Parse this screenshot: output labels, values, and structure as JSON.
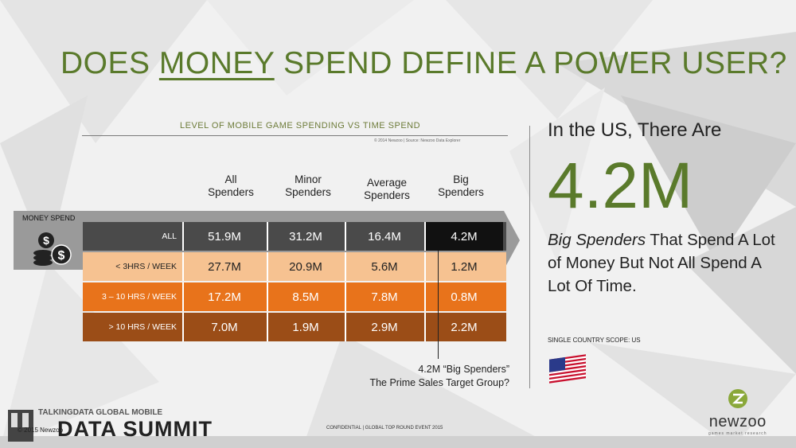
{
  "title": {
    "pre": "DOES ",
    "underlined": "MONEY",
    "post": " SPEND DEFINE A POWER USER?"
  },
  "chart": {
    "title": "LEVEL OF MOBILE GAME SPENDING VS TIME SPEND",
    "source": "© 2014 Newzoo | Source: Newzoo Data Explorer",
    "axis_label": "MONEY SPEND",
    "columns": [
      {
        "line1": "All",
        "line2": "Spenders"
      },
      {
        "line1": "Minor",
        "line2": "Spenders"
      },
      {
        "line1": "Average",
        "line2": "Spenders"
      },
      {
        "line1": "Big",
        "line2": "Spenders"
      }
    ],
    "rows": [
      {
        "label": "ALL",
        "values": [
          "51.9M",
          "31.2M",
          "16.4M",
          "4.2M"
        ],
        "bg": "#4a4a4a",
        "highlight": "#111111",
        "color": "#ffffff"
      },
      {
        "label": "< 3HRS / WEEK",
        "values": [
          "27.7M",
          "20.9M",
          "5.6M",
          "1.2M"
        ],
        "bg": "#f6c291",
        "highlight": "#f6c291",
        "color": "#222222"
      },
      {
        "label": "3 – 10 HRS / WEEK",
        "values": [
          "17.2M",
          "8.5M",
          "7.8M",
          "0.8M"
        ],
        "bg": "#e8731b",
        "highlight": "#e8731b",
        "color": "#ffffff"
      },
      {
        "label": "> 10 HRS / WEEK",
        "values": [
          "7.0M",
          "1.9M",
          "2.9M",
          "2.2M"
        ],
        "bg": "#9b4d17",
        "highlight": "#9b4d17",
        "color": "#ffffff"
      }
    ],
    "callout_line1": "4.2M “Big Spenders”",
    "callout_line2": "The Prime Sales Target Group?"
  },
  "chart_data": {
    "type": "table",
    "title": "LEVEL OF MOBILE GAME SPENDING VS TIME SPEND",
    "columns": [
      "All Spenders",
      "Minor Spenders",
      "Average Spenders",
      "Big Spenders"
    ],
    "rows": [
      {
        "name": "ALL",
        "values": [
          "51.9M",
          "31.2M",
          "16.4M",
          "4.2M"
        ]
      },
      {
        "name": "< 3HRS / WEEK",
        "values": [
          "27.7M",
          "20.9M",
          "5.6M",
          "1.2M"
        ]
      },
      {
        "name": "3 – 10 HRS / WEEK",
        "values": [
          "17.2M",
          "8.5M",
          "7.8M",
          "0.8M"
        ]
      },
      {
        "name": "> 10 HRS / WEEK",
        "values": [
          "7.0M",
          "1.9M",
          "2.9M",
          "2.2M"
        ]
      }
    ]
  },
  "side": {
    "heading": "In the US, There Are",
    "big_number": "4.2M",
    "italic": "Big Spenders",
    "text1": " That Spend A Lot of Money But Not All Spend A Lot Of Time.",
    "scope": "SINGLE COUNTRY SCOPE: US"
  },
  "footer": {
    "confidential": "CONFIDENTIAL | GLOBAL TOP ROUND EVENT 2015",
    "copyright": "© 2015 Newzoo",
    "event_line1": "TALKINGDATA GLOBAL MOBILE",
    "event_line2": "DATA SUMMIT"
  },
  "logo": {
    "name": "newzoo",
    "tagline": "games market research"
  },
  "colors": {
    "accent": "#5a7a2b",
    "dark": "#4a4a4a",
    "light_orange": "#f6c291",
    "orange": "#e8731b",
    "brown": "#9b4d17"
  }
}
